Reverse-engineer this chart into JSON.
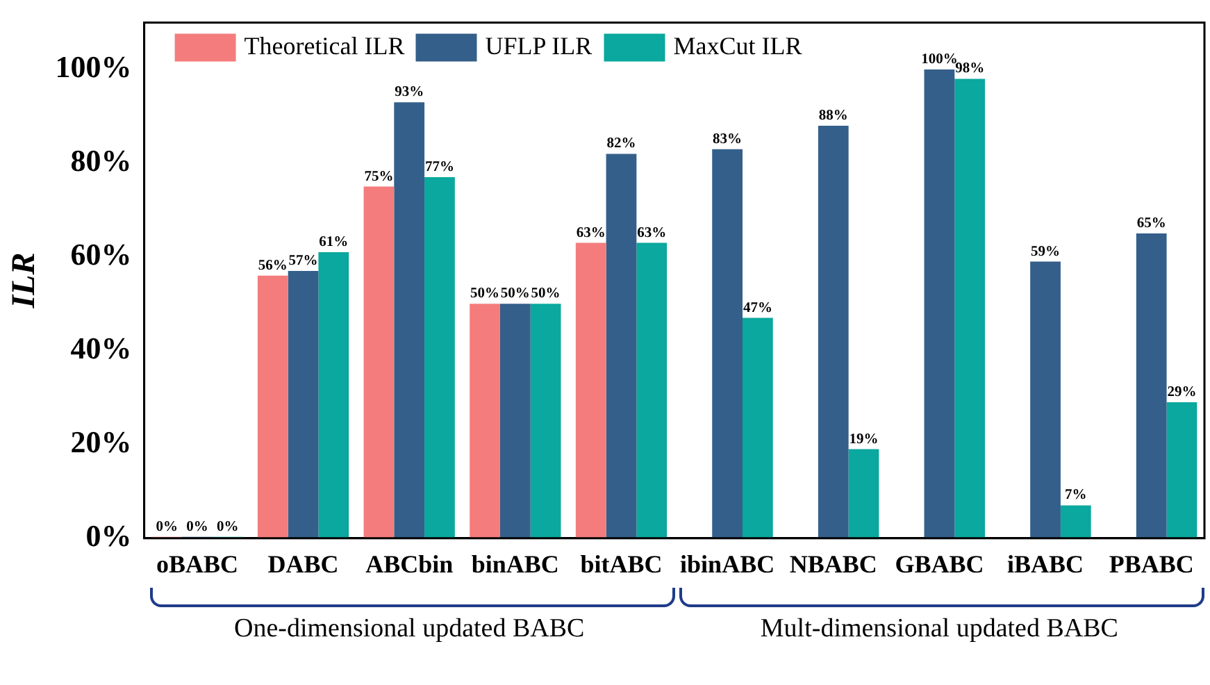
{
  "chart_data": {
    "type": "bar",
    "ylabel": "ILR",
    "categories": [
      "oBABC",
      "DABC",
      "ABCbin",
      "binABC",
      "bitABC",
      "ibinABC",
      "NBABC",
      "GBABC",
      "iBABC",
      "PBABC"
    ],
    "series": [
      {
        "name": "Theoretical ILR",
        "color": "#f47c7c",
        "values": [
          0,
          56,
          75,
          50,
          63,
          null,
          null,
          null,
          null,
          null
        ],
        "value_labels": [
          "0%",
          "56%",
          "75%",
          "50%",
          "63%",
          null,
          null,
          null,
          null,
          null
        ]
      },
      {
        "name": "UFLP ILR",
        "color": "#345f8a",
        "values": [
          0,
          57,
          93,
          50,
          82,
          83,
          88,
          100,
          59,
          65
        ],
        "value_labels": [
          "0%",
          "57%",
          "93%",
          "50%",
          "82%",
          "83%",
          "88%",
          "100%",
          "59%",
          "65%"
        ]
      },
      {
        "name": "MaxCut ILR",
        "color": "#0aa89e",
        "values": [
          0,
          61,
          77,
          50,
          63,
          47,
          19,
          98,
          7,
          29
        ],
        "value_labels": [
          "0%",
          "61%",
          "77%",
          "50%",
          "63%",
          "47%",
          "19%",
          "98%",
          "7%",
          "29%"
        ]
      }
    ],
    "ylim": [
      0,
      110
    ],
    "yticks": [
      {
        "value": 0,
        "label": "0%"
      },
      {
        "value": 20,
        "label": "20%"
      },
      {
        "value": 40,
        "label": "40%"
      },
      {
        "value": 60,
        "label": "60%"
      },
      {
        "value": 80,
        "label": "80%"
      },
      {
        "value": 100,
        "label": "100%"
      }
    ],
    "grid": false,
    "legend": "top left",
    "annotations": [
      "One-dimensional updated BABC",
      "Mult-dimensional updated BABC"
    ]
  }
}
